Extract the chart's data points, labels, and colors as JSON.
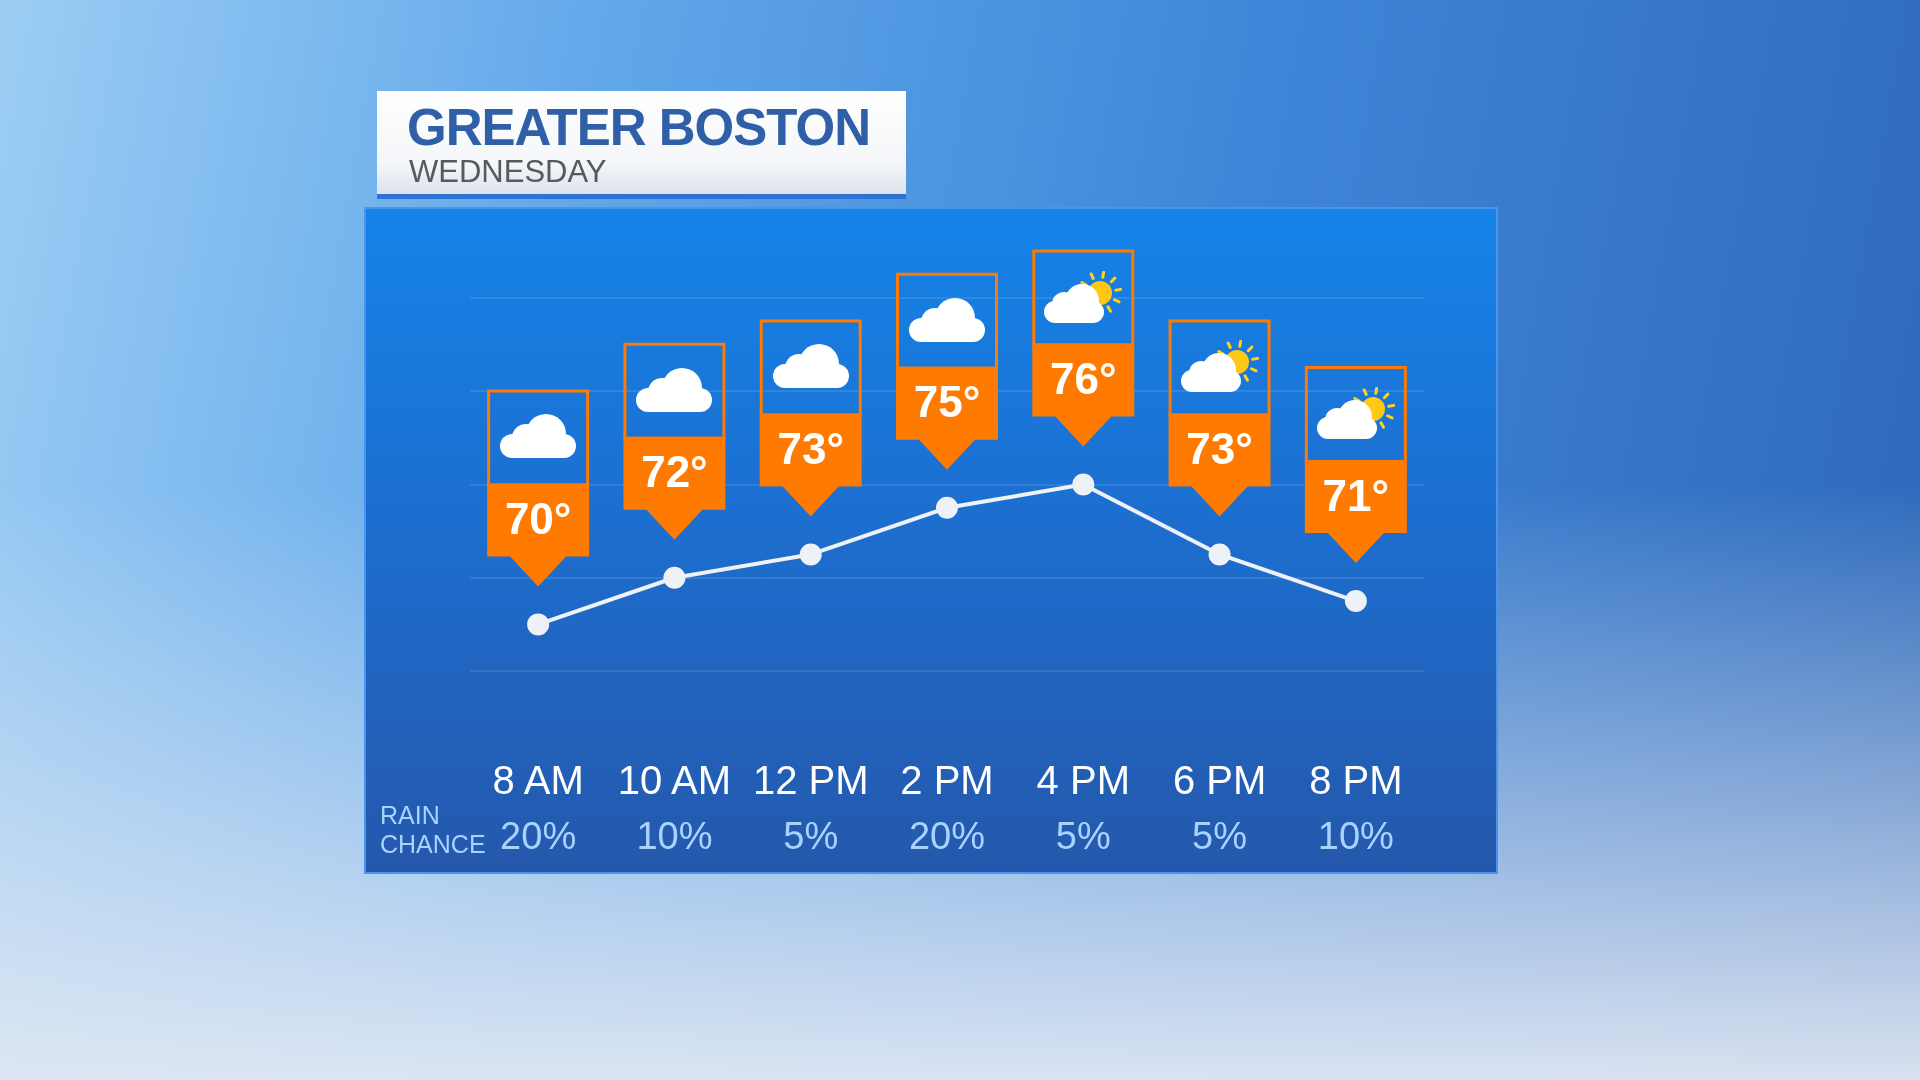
{
  "chart_data": {
    "type": "line",
    "title": "GREATER BOSTON",
    "subtitle": "WEDNESDAY",
    "categories": [
      "8 AM",
      "10 AM",
      "12 PM",
      "2 PM",
      "4 PM",
      "6 PM",
      "8 PM"
    ],
    "series": [
      {
        "color": "#eef1f5",
        "values": [
          70,
          72,
          73,
          75,
          76,
          73,
          71
        ],
        "value_labels": [
          "70°",
          "72°",
          "73°",
          "75°",
          "76°",
          "73°",
          "71°"
        ]
      }
    ],
    "ylim": [
      68,
      84
    ],
    "yticks": [
      {
        "value": 68,
        "label": null
      },
      {
        "value": 72,
        "label": null
      },
      {
        "value": 76,
        "label": null
      },
      {
        "value": 80,
        "label": null
      },
      {
        "value": 84,
        "label": null
      }
    ],
    "grid": "y",
    "tick_labels": "x",
    "marker": "circle",
    "line_style": "solid",
    "annotations": [
      "RAIN CHANCE",
      "20%",
      "10%",
      "5%",
      "20%",
      "5%",
      "5%",
      "10%"
    ]
  }
}
